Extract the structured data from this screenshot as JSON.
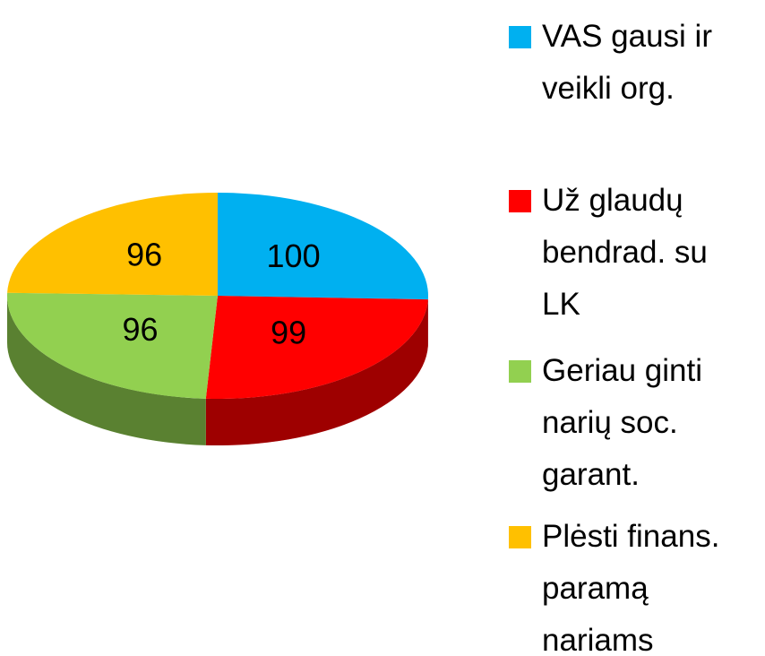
{
  "chart_data": {
    "type": "pie",
    "categories": [
      "VAS gausi ir veikli org.",
      "Už glaudų bendrad. su LK",
      "Geriau ginti narių soc. garant.",
      "Plėsti finans. paramą nariams"
    ],
    "values": [
      100,
      99,
      96,
      96
    ],
    "colors": [
      "#00b0f0",
      "#ff0000",
      "#92d050",
      "#ffc000"
    ],
    "legend": "right"
  }
}
